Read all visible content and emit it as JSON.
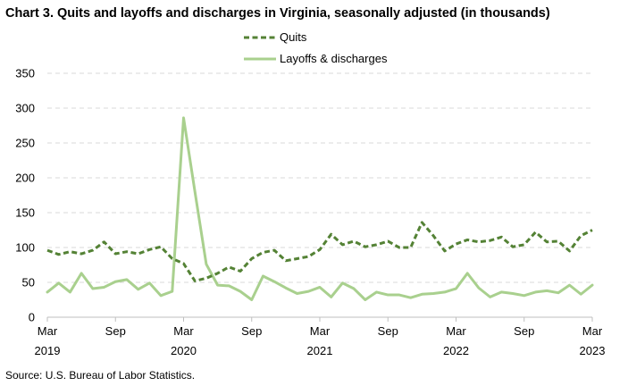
{
  "title": "Chart 3. Quits and layoffs and discharges in Virginia, seasonally adjusted (in thousands)",
  "source": "Source: U.S. Bureau of Labor Statistics.",
  "colors": {
    "quits": "#548235",
    "layoffs": "#a9d08e",
    "gridline": "#d9d9d9",
    "axis": "#bfbfbf"
  },
  "chart_data": {
    "type": "line",
    "title": "Chart 3. Quits and layoffs and discharges in Virginia, seasonally adjusted (in thousands)",
    "ylim": [
      0,
      350
    ],
    "yticks": [
      0,
      50,
      100,
      150,
      200,
      250,
      300,
      350
    ],
    "grid": "horizontal",
    "legend": "top-center",
    "x_tick_labels": [
      {
        "index": 0,
        "month": "Mar",
        "year": "2019"
      },
      {
        "index": 6,
        "month": "Sep",
        "year": ""
      },
      {
        "index": 12,
        "month": "Mar",
        "year": "2020"
      },
      {
        "index": 18,
        "month": "Sep",
        "year": ""
      },
      {
        "index": 24,
        "month": "Mar",
        "year": "2021"
      },
      {
        "index": 30,
        "month": "Sep",
        "year": ""
      },
      {
        "index": 36,
        "month": "Mar",
        "year": "2022"
      },
      {
        "index": 42,
        "month": "Sep",
        "year": ""
      },
      {
        "index": 48,
        "month": "Mar",
        "year": "2023"
      }
    ],
    "x_start": "2019-03",
    "x_end": "2023-03",
    "series": [
      {
        "name": "Quits",
        "style": "dashed",
        "values": [
          96,
          90,
          94,
          91,
          96,
          108,
          91,
          94,
          91,
          97,
          101,
          84,
          77,
          52,
          56,
          63,
          72,
          66,
          84,
          93,
          96,
          81,
          84,
          87,
          97,
          119,
          104,
          109,
          101,
          104,
          109,
          100,
          100,
          136,
          117,
          95,
          105,
          111,
          108,
          110,
          115,
          101,
          104,
          122,
          108,
          109,
          95,
          117,
          125
        ]
      },
      {
        "name": "Layoffs & discharges",
        "style": "solid",
        "values": [
          36,
          49,
          36,
          63,
          41,
          43,
          51,
          54,
          40,
          49,
          31,
          37,
          286,
          180,
          76,
          46,
          45,
          37,
          25,
          59,
          51,
          42,
          34,
          37,
          43,
          29,
          49,
          41,
          25,
          36,
          32,
          32,
          28,
          33,
          34,
          36,
          41,
          63,
          42,
          29,
          36,
          34,
          31,
          36,
          38,
          35,
          46,
          33,
          46
        ]
      }
    ]
  }
}
